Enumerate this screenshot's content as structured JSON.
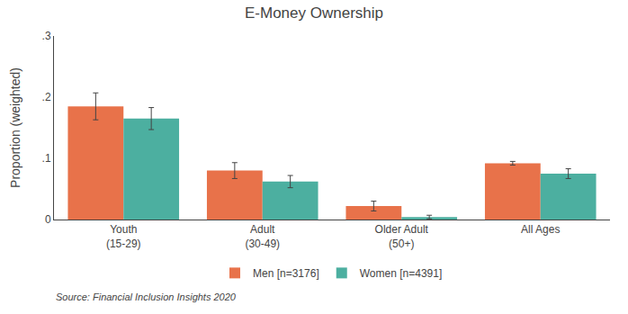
{
  "chart_data": {
    "type": "bar",
    "title": "E-Money Ownership",
    "ylabel": "Proportion (weighted)",
    "source": "Source: Financial Inclusion Insights 2020",
    "categories": [
      "Youth\n(15-29)",
      "Adult\n(30-49)",
      "Older Adult\n(50+)",
      "All Ages"
    ],
    "series": [
      {
        "name": "Men [n=3176]",
        "color": "#E8724A",
        "values": [
          0.185,
          0.08,
          0.022,
          0.092
        ],
        "errors": [
          0.022,
          0.013,
          0.008,
          0.003
        ]
      },
      {
        "name": "Women [n=4391]",
        "color": "#4CAFA0",
        "values": [
          0.165,
          0.062,
          0.004,
          0.075
        ],
        "errors": [
          0.018,
          0.01,
          0.003,
          0.008
        ]
      }
    ],
    "ylim": [
      0,
      0.3
    ],
    "yticks": [
      0,
      {
        "value": 0.1,
        "label": ".1"
      },
      {
        "value": 0.2,
        "label": ".2"
      },
      {
        "value": 0.3,
        "label": ".3"
      }
    ],
    "grid": false,
    "legend": "bottom"
  }
}
